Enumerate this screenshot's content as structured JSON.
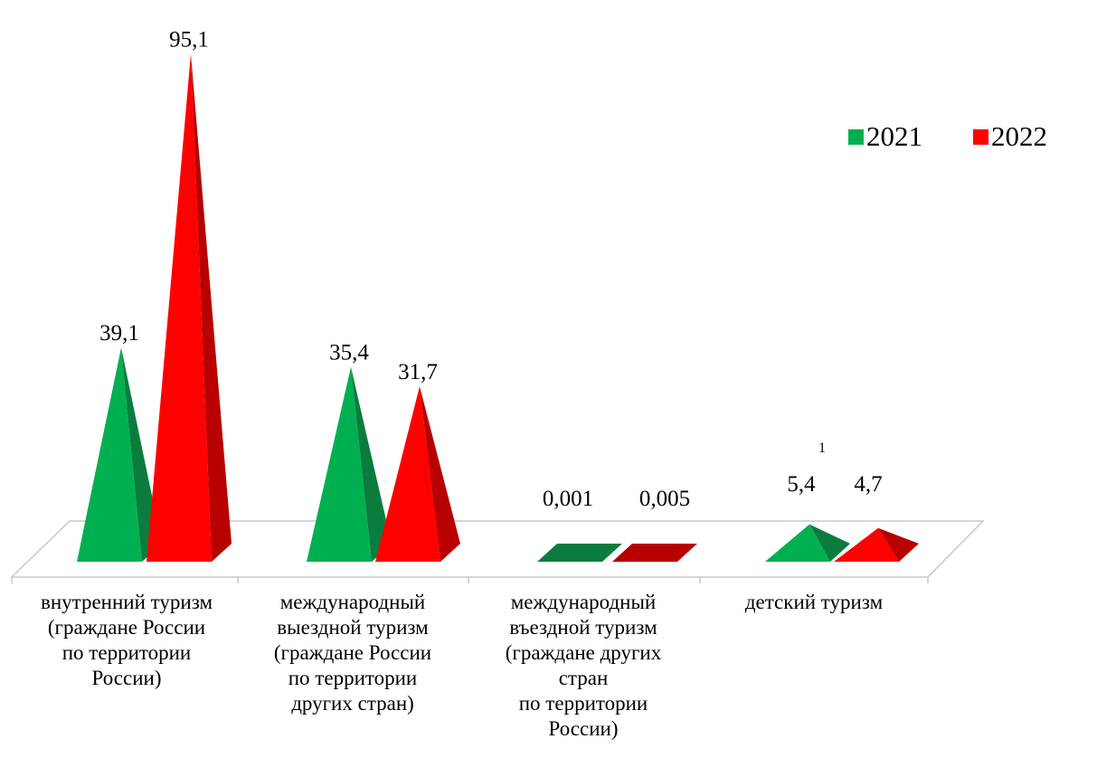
{
  "chart_data": {
    "type": "bar",
    "categories": [
      "внутренний туризм\n(граждане России\nпо территории\nРоссии)",
      "международный\nвыездной туризм\n(граждане России\nпо территории\nдругих стран)",
      "международный\nвъездной туризм\n(граждане других\nстран\nпо территории\nРоссии)",
      "детский туризм"
    ],
    "series": [
      {
        "name": "2021",
        "values": [
          39.1,
          35.4,
          0.001,
          5.4
        ],
        "labels": [
          "39,1",
          "35,4",
          "0,001",
          "5,4"
        ],
        "color": "#00b050",
        "side_color": "#0a7d3e"
      },
      {
        "name": "2022",
        "values": [
          95.1,
          31.7,
          0.005,
          4.7
        ],
        "labels": [
          "95,1",
          "31,7",
          "0,005",
          "4,7"
        ],
        "color": "#ff0000",
        "side_color": "#b80000"
      }
    ],
    "ylim": [
      0,
      100
    ],
    "grid": false,
    "legend": "top-right",
    "footnote_mark": "1"
  }
}
